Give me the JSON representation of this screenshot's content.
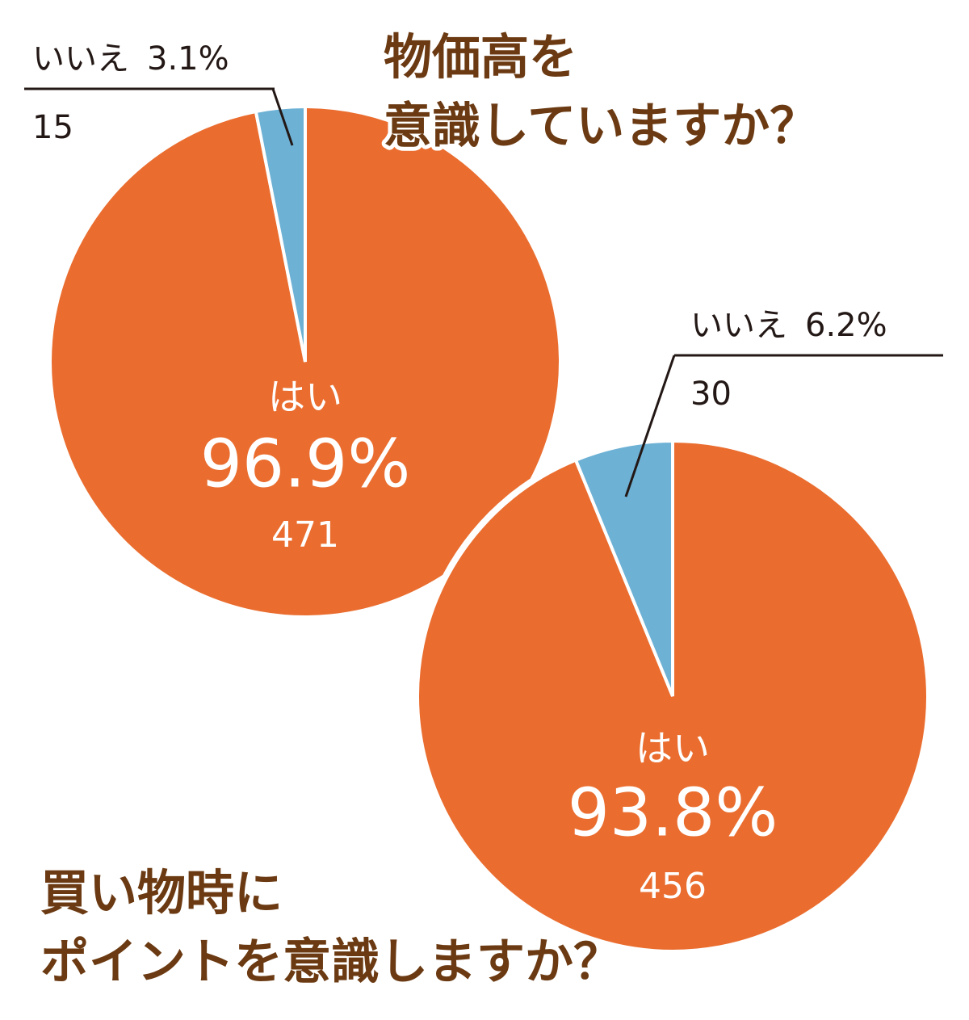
{
  "chart_data": [
    {
      "type": "pie",
      "title": [
        "物価高を",
        "意識していますか？"
      ],
      "categories": [
        "はい",
        "いいえ"
      ],
      "values": [
        96.9,
        3.1
      ],
      "value_labels": [
        "96.9%",
        "3.1%"
      ],
      "counts": [
        471,
        15
      ],
      "colors": [
        "#ea6d2f",
        "#6db1d5"
      ]
    },
    {
      "type": "pie",
      "title": [
        "買い物時に",
        "ポイントを意識しますか？"
      ],
      "categories": [
        "はい",
        "いいえ"
      ],
      "values": [
        93.8,
        6.2
      ],
      "value_labels": [
        "93.8%",
        "6.2%"
      ],
      "counts": [
        456,
        30
      ],
      "colors": [
        "#ea6d2f",
        "#6db1d5"
      ]
    }
  ]
}
